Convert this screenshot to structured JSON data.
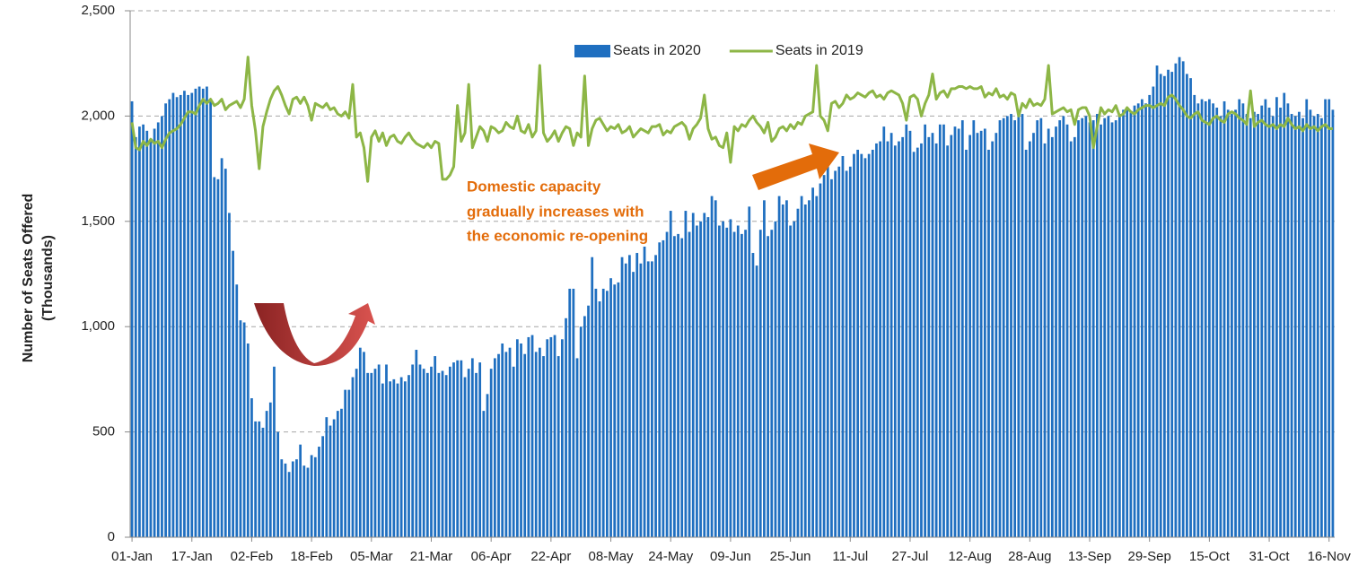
{
  "chart_data": {
    "type": "combo",
    "y_label": [
      "Number of Seats Offered",
      "(Thousands)"
    ],
    "annotation": [
      "Domestic capacity",
      "gradually increases with",
      "the economic re-opening"
    ],
    "ylim": [
      0,
      2500
    ],
    "yticks": [
      0,
      500,
      {
        "value": 1000,
        "label": "1,000"
      },
      {
        "value": 1500,
        "label": "1,500"
      },
      {
        "value": 2000,
        "label": "2,000"
      },
      {
        "value": 2500,
        "label": "2,500"
      }
    ],
    "grid": true,
    "legend": "top",
    "categories": [
      "01-Jan",
      null,
      null,
      null,
      null,
      null,
      null,
      null,
      null,
      null,
      null,
      null,
      null,
      null,
      null,
      null,
      "17-Jan",
      null,
      null,
      null,
      null,
      null,
      null,
      null,
      null,
      null,
      null,
      null,
      null,
      null,
      null,
      null,
      "02-Feb",
      null,
      null,
      null,
      null,
      null,
      null,
      null,
      null,
      null,
      null,
      null,
      null,
      null,
      null,
      null,
      "18-Feb",
      null,
      null,
      null,
      null,
      null,
      null,
      null,
      null,
      null,
      null,
      null,
      null,
      null,
      null,
      null,
      "05-Mar",
      null,
      null,
      null,
      null,
      null,
      null,
      null,
      null,
      null,
      null,
      null,
      null,
      null,
      null,
      null,
      "21-Mar",
      null,
      null,
      null,
      null,
      null,
      null,
      null,
      null,
      null,
      null,
      null,
      null,
      null,
      null,
      null,
      "06-Apr",
      null,
      null,
      null,
      null,
      null,
      null,
      null,
      null,
      null,
      null,
      null,
      null,
      null,
      null,
      null,
      "22-Apr",
      null,
      null,
      null,
      null,
      null,
      null,
      null,
      null,
      null,
      null,
      null,
      null,
      null,
      null,
      null,
      "08-May",
      null,
      null,
      null,
      null,
      null,
      null,
      null,
      null,
      null,
      null,
      null,
      null,
      null,
      null,
      null,
      "24-May",
      null,
      null,
      null,
      null,
      null,
      null,
      null,
      null,
      null,
      null,
      null,
      null,
      null,
      null,
      null,
      "09-Jun",
      null,
      null,
      null,
      null,
      null,
      null,
      null,
      null,
      null,
      null,
      null,
      null,
      null,
      null,
      null,
      "25-Jun",
      null,
      null,
      null,
      null,
      null,
      null,
      null,
      null,
      null,
      null,
      null,
      null,
      null,
      null,
      null,
      "11-Jul",
      null,
      null,
      null,
      null,
      null,
      null,
      null,
      null,
      null,
      null,
      null,
      null,
      null,
      null,
      null,
      "27-Jul",
      null,
      null,
      null,
      null,
      null,
      null,
      null,
      null,
      null,
      null,
      null,
      null,
      null,
      null,
      null,
      "12-Aug",
      null,
      null,
      null,
      null,
      null,
      null,
      null,
      null,
      null,
      null,
      null,
      null,
      null,
      null,
      null,
      "28-Aug",
      null,
      null,
      null,
      null,
      null,
      null,
      null,
      null,
      null,
      null,
      null,
      null,
      null,
      null,
      null,
      "13-Sep",
      null,
      null,
      null,
      null,
      null,
      null,
      null,
      null,
      null,
      null,
      null,
      null,
      null,
      null,
      null,
      "29-Sep",
      null,
      null,
      null,
      null,
      null,
      null,
      null,
      null,
      null,
      null,
      null,
      null,
      null,
      null,
      null,
      "15-Oct",
      null,
      null,
      null,
      null,
      null,
      null,
      null,
      null,
      null,
      null,
      null,
      null,
      null,
      null,
      null,
      "31-Oct",
      null,
      null,
      null,
      null,
      null,
      null,
      null,
      null,
      null,
      null,
      null,
      null,
      null,
      null,
      null,
      "16-Nov",
      null
    ],
    "series": [
      {
        "name": "Seats in 2020",
        "type": "bar",
        "color": "#1f6fc0",
        "values": [
          2070,
          1900,
          1950,
          1960,
          1930,
          1880,
          1940,
          1970,
          2000,
          2060,
          2080,
          2110,
          2090,
          2100,
          2120,
          2100,
          2110,
          2130,
          2140,
          2130,
          2140,
          2080,
          1710,
          1700,
          1800,
          1750,
          1540,
          1360,
          1200,
          1030,
          1020,
          920,
          660,
          550,
          550,
          520,
          600,
          640,
          810,
          500,
          370,
          350,
          310,
          360,
          370,
          440,
          340,
          330,
          390,
          380,
          430,
          480,
          570,
          530,
          560,
          600,
          610,
          700,
          700,
          760,
          800,
          900,
          880,
          780,
          780,
          800,
          820,
          730,
          820,
          740,
          750,
          730,
          760,
          740,
          770,
          820,
          890,
          820,
          800,
          780,
          810,
          860,
          780,
          790,
          770,
          810,
          830,
          840,
          840,
          760,
          800,
          850,
          780,
          830,
          600,
          680,
          800,
          850,
          870,
          920,
          880,
          900,
          810,
          940,
          920,
          870,
          950,
          960,
          880,
          900,
          860,
          940,
          950,
          960,
          860,
          940,
          1040,
          1180,
          1180,
          850,
          1000,
          1050,
          1100,
          1330,
          1180,
          1120,
          1180,
          1170,
          1230,
          1200,
          1210,
          1330,
          1300,
          1340,
          1260,
          1350,
          1300,
          1380,
          1310,
          1310,
          1340,
          1400,
          1410,
          1450,
          1550,
          1430,
          1440,
          1420,
          1550,
          1450,
          1540,
          1480,
          1500,
          1540,
          1520,
          1620,
          1600,
          1480,
          1500,
          1470,
          1510,
          1450,
          1480,
          1440,
          1460,
          1570,
          1350,
          1290,
          1460,
          1600,
          1430,
          1460,
          1500,
          1620,
          1580,
          1600,
          1480,
          1500,
          1560,
          1620,
          1580,
          1600,
          1660,
          1620,
          1680,
          1720,
          1760,
          1700,
          1740,
          1760,
          1810,
          1740,
          1760,
          1820,
          1840,
          1820,
          1800,
          1820,
          1840,
          1870,
          1880,
          1950,
          1880,
          1920,
          1860,
          1880,
          1900,
          1960,
          1930,
          1830,
          1850,
          1870,
          1960,
          1900,
          1920,
          1870,
          1960,
          1960,
          1860,
          1910,
          1950,
          1940,
          1980,
          1840,
          1910,
          1980,
          1920,
          1930,
          1940,
          1840,
          1880,
          1920,
          1980,
          1990,
          2000,
          2010,
          1980,
          2000,
          2010,
          1840,
          1880,
          1920,
          1980,
          1990,
          1870,
          1940,
          1900,
          1950,
          1980,
          2000,
          1960,
          1880,
          1900,
          1980,
          1990,
          2000,
          1970,
          1980,
          2010,
          1960,
          1990,
          2000,
          1970,
          1980,
          2010,
          2030,
          2040,
          2020,
          2050,
          2060,
          2080,
          2060,
          2100,
          2140,
          2240,
          2200,
          2190,
          2220,
          2210,
          2250,
          2280,
          2260,
          2200,
          2180,
          2100,
          2060,
          2080,
          2070,
          2080,
          2060,
          2040,
          2000,
          2070,
          2030,
          2010,
          2030,
          2080,
          2060,
          2010,
          1990,
          2020,
          2010,
          2050,
          2080,
          2040,
          2000,
          2090,
          2040,
          2110,
          2060,
          2010,
          2000,
          2020,
          1990,
          2080,
          2030,
          2000,
          2010,
          1990,
          2080,
          2080,
          2030
        ]
      },
      {
        "name": "Seats in 2019",
        "type": "line",
        "color": "#8db646",
        "values": [
          1970,
          1850,
          1840,
          1880,
          1860,
          1890,
          1870,
          1880,
          1850,
          1890,
          1920,
          1930,
          1940,
          1960,
          1990,
          2020,
          2020,
          2010,
          2050,
          2080,
          2060,
          2080,
          2050,
          2060,
          2080,
          2030,
          2050,
          2060,
          2070,
          2040,
          2080,
          2280,
          2050,
          1930,
          1750,
          1950,
          2020,
          2080,
          2120,
          2140,
          2100,
          2050,
          2010,
          2080,
          2090,
          2060,
          2090,
          2050,
          1980,
          2060,
          2050,
          2040,
          2060,
          2030,
          2040,
          2010,
          2000,
          2020,
          1990,
          2150,
          1900,
          1920,
          1850,
          1690,
          1900,
          1930,
          1880,
          1920,
          1860,
          1900,
          1910,
          1880,
          1870,
          1900,
          1920,
          1890,
          1870,
          1860,
          1850,
          1870,
          1850,
          1880,
          1870,
          1700,
          1700,
          1720,
          1760,
          2050,
          1880,
          1920,
          2150,
          1850,
          1900,
          1950,
          1930,
          1880,
          1950,
          1940,
          1920,
          1930,
          1970,
          1950,
          1940,
          2000,
          1930,
          1920,
          1960,
          1900,
          1930,
          2240,
          1920,
          1880,
          1900,
          1930,
          1880,
          1920,
          1950,
          1940,
          1860,
          1920,
          1900,
          2190,
          1860,
          1940,
          1980,
          1990,
          1960,
          1930,
          1950,
          1940,
          1960,
          1920,
          1930,
          1950,
          1900,
          1920,
          1940,
          1930,
          1920,
          1950,
          1950,
          1960,
          1910,
          1930,
          1920,
          1950,
          1960,
          1970,
          1950,
          1890,
          1940,
          1960,
          1990,
          2100,
          1940,
          1890,
          1900,
          1860,
          1850,
          1920,
          1780,
          1950,
          1930,
          1960,
          1950,
          1980,
          2000,
          1970,
          1950,
          1920,
          1970,
          1880,
          1900,
          1940,
          1950,
          1930,
          1960,
          1940,
          1970,
          1960,
          2000,
          2010,
          2020,
          2240,
          2000,
          1980,
          1930,
          2060,
          2070,
          2040,
          2060,
          2100,
          2080,
          2090,
          2110,
          2100,
          2090,
          2110,
          2120,
          2090,
          2100,
          2080,
          2110,
          2120,
          2110,
          2100,
          2060,
          1980,
          2090,
          2100,
          2080,
          2000,
          2060,
          2100,
          2200,
          2080,
          2110,
          2120,
          2090,
          2130,
          2130,
          2140,
          2140,
          2130,
          2140,
          2130,
          2130,
          2140,
          2090,
          2110,
          2100,
          2130,
          2090,
          2100,
          2080,
          2110,
          2100,
          2000,
          2060,
          2040,
          2080,
          2050,
          2060,
          2050,
          2080,
          2240,
          2010,
          2020,
          2030,
          2040,
          2020,
          2030,
          1960,
          2030,
          2040,
          2040,
          2000,
          1850,
          1950,
          2040,
          2010,
          2030,
          2020,
          2050,
          2000,
          2010,
          2040,
          2020,
          2010,
          2030,
          2040,
          2050,
          2050,
          2040,
          2050,
          2060,
          2050,
          2090,
          2100,
          2080,
          2050,
          2030,
          2000,
          1990,
          2010,
          2020,
          1980,
          1970,
          1960,
          1990,
          2000,
          1980,
          1970,
          2010,
          2020,
          2010,
          1990,
          1980,
          1960,
          2120,
          1950,
          1970,
          1980,
          1960,
          1950,
          1960,
          1940,
          1960,
          1950,
          1990,
          1960,
          1940,
          1950,
          1930,
          1960,
          1940,
          1950,
          1930,
          1950,
          1960,
          1940,
          1940
        ]
      }
    ]
  }
}
